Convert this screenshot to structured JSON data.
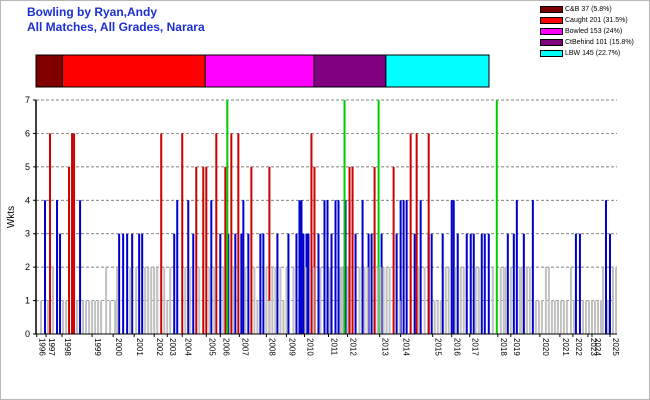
{
  "title_line1": "Bowling by Ryan,Andy",
  "title_line2": "All Matches, All Grades, Narara",
  "legend": [
    {
      "label": "C&B 37 (5.8%)",
      "color": "#800000"
    },
    {
      "label": "Caught 201 (31.5%)",
      "color": "#ff0000"
    },
    {
      "label": "Bowled 153 (24%)",
      "color": "#ff00ff"
    },
    {
      "label": "CtBehind 101 (15.8%)",
      "color": "#800080"
    },
    {
      "label": "LBW 145 (22.7%)",
      "color": "#00ffff"
    }
  ],
  "chart_data": {
    "type": "bar",
    "ylabel": "Wkts",
    "ylim": [
      0,
      7
    ],
    "yticks": [
      "0",
      "1",
      "2",
      "3",
      "4",
      "5",
      "6",
      "7"
    ],
    "grid": "horizontal dashed",
    "proportion_bar": [
      {
        "name": "C&B",
        "value": 37,
        "color": "#800000"
      },
      {
        "name": "Caught",
        "value": 201,
        "color": "#ff0000"
      },
      {
        "name": "Bowled",
        "value": 153,
        "color": "#ff00ff"
      },
      {
        "name": "CtBehind",
        "value": 101,
        "color": "#800080"
      },
      {
        "name": "LBW",
        "value": 145,
        "color": "#00ffff"
      }
    ],
    "year_labels": [
      {
        "label": "1996",
        "pos": 0.7
      },
      {
        "label": "1997",
        "pos": 10
      },
      {
        "label": "1998",
        "pos": 26
      },
      {
        "label": "1999",
        "pos": 56
      },
      {
        "label": "2000",
        "pos": 77
      },
      {
        "label": "2001",
        "pos": 98
      },
      {
        "label": "2002",
        "pos": 118
      },
      {
        "label": "2003",
        "pos": 131
      },
      {
        "label": "2004",
        "pos": 146
      },
      {
        "label": "2005",
        "pos": 170
      },
      {
        "label": "2006",
        "pos": 184
      },
      {
        "label": "2007",
        "pos": 203
      },
      {
        "label": "2008",
        "pos": 230
      },
      {
        "label": "2009",
        "pos": 250
      },
      {
        "label": "2010",
        "pos": 268
      },
      {
        "label": "2011",
        "pos": 292
      },
      {
        "label": "2012",
        "pos": 311
      },
      {
        "label": "2013",
        "pos": 343
      },
      {
        "label": "2014",
        "pos": 364
      },
      {
        "label": "2015",
        "pos": 396
      },
      {
        "label": "2016",
        "pos": 415
      },
      {
        "label": "2017",
        "pos": 433
      },
      {
        "label": "2018",
        "pos": 461
      },
      {
        "label": "2019",
        "pos": 474
      },
      {
        "label": "2020",
        "pos": 503
      },
      {
        "label": "2021",
        "pos": 523
      },
      {
        "label": "2022",
        "pos": 536
      },
      {
        "label": "2023",
        "pos": 551
      },
      {
        "label": "2024",
        "pos": 555
      },
      {
        "label": "2025",
        "pos": 573
      }
    ],
    "series": [
      {
        "color": "#0000cc",
        "bars": [
          [
            8,
            4
          ],
          [
            20,
            4
          ],
          [
            23,
            3
          ],
          [
            43,
            4
          ],
          [
            82,
            3
          ],
          [
            86,
            3
          ],
          [
            90,
            3
          ],
          [
            95,
            3
          ],
          [
            102,
            3
          ],
          [
            105,
            3
          ],
          [
            137,
            3
          ],
          [
            140,
            4
          ],
          [
            151,
            4
          ],
          [
            156,
            3
          ],
          [
            174,
            4
          ],
          [
            183,
            3
          ],
          [
            191,
            3
          ],
          [
            198,
            3
          ],
          [
            204,
            3
          ],
          [
            206,
            4
          ],
          [
            211,
            3
          ],
          [
            223,
            3
          ],
          [
            226,
            3
          ],
          [
            240,
            3
          ],
          [
            251,
            3
          ],
          [
            259,
            3
          ],
          [
            262,
            4
          ],
          [
            264,
            4
          ],
          [
            266,
            3
          ],
          [
            269,
            3
          ],
          [
            271,
            3
          ],
          [
            281,
            3
          ],
          [
            287,
            4
          ],
          [
            290,
            4
          ],
          [
            294,
            3
          ],
          [
            298,
            4
          ],
          [
            301,
            4
          ],
          [
            308,
            4
          ],
          [
            312,
            4
          ],
          [
            318,
            3
          ],
          [
            325,
            4
          ],
          [
            331,
            3
          ],
          [
            334,
            3
          ],
          [
            337,
            3
          ],
          [
            344,
            3
          ],
          [
            359,
            3
          ],
          [
            363,
            4
          ],
          [
            366,
            4
          ],
          [
            369,
            4
          ],
          [
            377,
            3
          ],
          [
            383,
            4
          ],
          [
            391,
            3
          ],
          [
            394,
            3
          ],
          [
            405,
            3
          ],
          [
            414,
            4
          ],
          [
            416,
            4
          ],
          [
            420,
            3
          ],
          [
            429,
            3
          ],
          [
            433,
            3
          ],
          [
            436,
            3
          ],
          [
            444,
            3
          ],
          [
            447,
            3
          ],
          [
            451,
            3
          ],
          [
            470,
            3
          ],
          [
            476,
            3
          ],
          [
            479,
            4
          ],
          [
            486,
            3
          ],
          [
            495,
            4
          ],
          [
            538,
            3
          ],
          [
            542,
            3
          ],
          [
            568,
            4
          ],
          [
            572,
            3
          ]
        ]
      },
      {
        "color": "#cc0000",
        "bars": [
          [
            13,
            6
          ],
          [
            32,
            5
          ],
          [
            35,
            6
          ],
          [
            37,
            6
          ],
          [
            124,
            6
          ],
          [
            145,
            6
          ],
          [
            159,
            5
          ],
          [
            166,
            5
          ],
          [
            169,
            5
          ],
          [
            179,
            6
          ],
          [
            188,
            5
          ],
          [
            194,
            6
          ],
          [
            201,
            6
          ],
          [
            214,
            5
          ],
          [
            232,
            5
          ],
          [
            274,
            6
          ],
          [
            277,
            5
          ],
          [
            312,
            5
          ],
          [
            315,
            5
          ],
          [
            337,
            5
          ],
          [
            356,
            5
          ],
          [
            373,
            6
          ],
          [
            379,
            6
          ],
          [
            391,
            6
          ]
        ]
      },
      {
        "color": "#00cc00",
        "bars": [
          [
            190,
            7
          ],
          [
            307,
            7
          ],
          [
            341,
            7
          ],
          [
            459,
            7
          ]
        ]
      },
      {
        "color": "#c0c0c0",
        "bars": [
          [
            4,
            1
          ],
          [
            11,
            1
          ],
          [
            16,
            2
          ],
          [
            26,
            1
          ],
          [
            29,
            1
          ],
          [
            40,
            1
          ],
          [
            46,
            1
          ],
          [
            49,
            1
          ],
          [
            52,
            1
          ],
          [
            55,
            1
          ],
          [
            58,
            1
          ],
          [
            61,
            1
          ],
          [
            64,
            1
          ],
          [
            69,
            2
          ],
          [
            73,
            1
          ],
          [
            78,
            1
          ],
          [
            80,
            2
          ],
          [
            93,
            2
          ],
          [
            99,
            2
          ],
          [
            108,
            2
          ],
          [
            111,
            2
          ],
          [
            114,
            2
          ],
          [
            117,
            2
          ],
          [
            120,
            2
          ],
          [
            127,
            2
          ],
          [
            130,
            1
          ],
          [
            133,
            2
          ],
          [
            148,
            2
          ],
          [
            153,
            2
          ],
          [
            162,
            2
          ],
          [
            172,
            2
          ],
          [
            177,
            2
          ],
          [
            186,
            2
          ],
          [
            196,
            2
          ],
          [
            208,
            2
          ],
          [
            217,
            2
          ],
          [
            220,
            1
          ],
          [
            229,
            2
          ],
          [
            232,
            1
          ],
          [
            235,
            2
          ],
          [
            238,
            2
          ],
          [
            243,
            2
          ],
          [
            246,
            1
          ],
          [
            249,
            2
          ],
          [
            256,
            2
          ],
          [
            268,
            2
          ],
          [
            276,
            2
          ],
          [
            283,
            2
          ],
          [
            292,
            2
          ],
          [
            303,
            2
          ],
          [
            305,
            2
          ],
          [
            310,
            2
          ],
          [
            322,
            2
          ],
          [
            327,
            2
          ],
          [
            330,
            2
          ],
          [
            340,
            2
          ],
          [
            343,
            2
          ],
          [
            346,
            2
          ],
          [
            349,
            2
          ],
          [
            352,
            2
          ],
          [
            362,
            1
          ],
          [
            381,
            2
          ],
          [
            387,
            2
          ],
          [
            397,
            1
          ],
          [
            400,
            1
          ],
          [
            403,
            1
          ],
          [
            408,
            2
          ],
          [
            411,
            2
          ],
          [
            418,
            2
          ],
          [
            423,
            2
          ],
          [
            426,
            2
          ],
          [
            438,
            2
          ],
          [
            441,
            2
          ],
          [
            455,
            2
          ],
          [
            463,
            2
          ],
          [
            466,
            2
          ],
          [
            468,
            2
          ],
          [
            473,
            2
          ],
          [
            482,
            2
          ],
          [
            484,
            2
          ],
          [
            489,
            2
          ],
          [
            492,
            2
          ],
          [
            498,
            1
          ],
          [
            501,
            1
          ],
          [
            504,
            1
          ],
          [
            508,
            2
          ],
          [
            511,
            2
          ],
          [
            514,
            1
          ],
          [
            517,
            1
          ],
          [
            520,
            1
          ],
          [
            523,
            1
          ],
          [
            526,
            1
          ],
          [
            529,
            1
          ],
          [
            533,
            2
          ],
          [
            536,
            1
          ],
          [
            545,
            1
          ],
          [
            548,
            1
          ],
          [
            551,
            1
          ],
          [
            554,
            1
          ],
          [
            557,
            1
          ],
          [
            560,
            1
          ],
          [
            563,
            1
          ],
          [
            565,
            2
          ],
          [
            570,
            1
          ],
          [
            575,
            2
          ],
          [
            578,
            2
          ]
        ]
      }
    ],
    "pos_range": [
      0,
      580
    ]
  }
}
